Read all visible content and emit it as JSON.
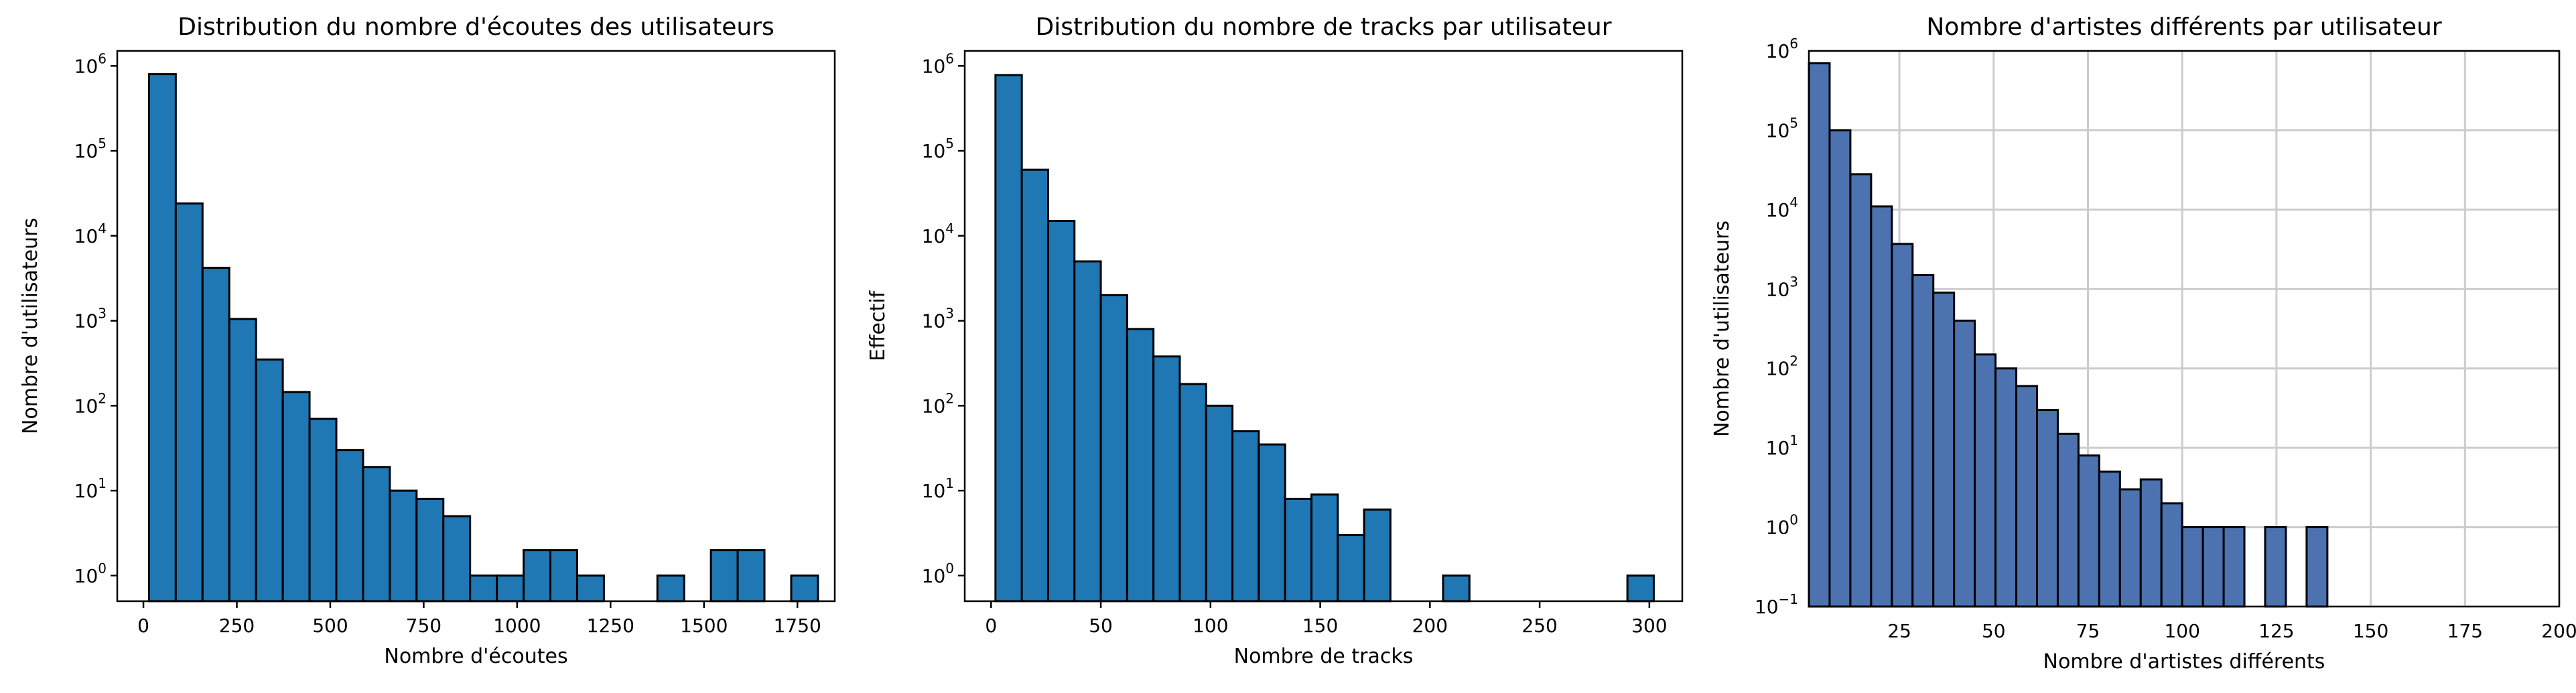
{
  "chart_data": [
    {
      "type": "bar",
      "title": "Distribution du nombre d'écoutes des utilisateurs",
      "xlabel": "Nombre d'écoutes",
      "ylabel": "Nombre d'utilisateurs",
      "yscale": "log",
      "xlim": [
        -70,
        1850
      ],
      "ylim": [
        0.5,
        1500000
      ],
      "grid": false,
      "bar_color": "#1f77b4",
      "edge_color": "#000000",
      "xticks": [
        0,
        250,
        500,
        750,
        1000,
        1250,
        1500,
        1750
      ],
      "xtick_labels": [
        "0",
        "250",
        "500",
        "750",
        "1000",
        "1250",
        "1500",
        "1750"
      ],
      "ytick_labels": [
        {
          "value": 1,
          "base": "10",
          "exp": "0"
        },
        {
          "value": 10,
          "base": "10",
          "exp": "1"
        },
        {
          "value": 100,
          "base": "10",
          "exp": "2"
        },
        {
          "value": 1000,
          "base": "10",
          "exp": "3"
        },
        {
          "value": 10000,
          "base": "10",
          "exp": "4"
        },
        {
          "value": 100000,
          "base": "10",
          "exp": "5"
        },
        {
          "value": 1000000,
          "base": "10",
          "exp": "6"
        }
      ],
      "bin_start": 15,
      "bin_width": 71.6,
      "values": [
        800000,
        24000,
        4200,
        1050,
        350,
        145,
        70,
        30,
        19,
        10,
        8,
        5,
        1,
        1,
        2,
        2,
        1,
        0,
        0,
        1,
        0,
        2,
        2,
        0,
        1
      ]
    },
    {
      "type": "bar",
      "title": "Distribution du nombre de tracks par utilisateur",
      "xlabel": "Nombre de tracks",
      "ylabel": "Effectif",
      "yscale": "log",
      "xlim": [
        -12,
        315
      ],
      "ylim": [
        0.5,
        1500000
      ],
      "grid": false,
      "bar_color": "#1f77b4",
      "edge_color": "#000000",
      "xticks": [
        0,
        50,
        100,
        150,
        200,
        250,
        300
      ],
      "xtick_labels": [
        "0",
        "50",
        "100",
        "150",
        "200",
        "250",
        "300"
      ],
      "ytick_labels": [
        {
          "value": 1,
          "base": "10",
          "exp": "0"
        },
        {
          "value": 10,
          "base": "10",
          "exp": "1"
        },
        {
          "value": 100,
          "base": "10",
          "exp": "2"
        },
        {
          "value": 1000,
          "base": "10",
          "exp": "3"
        },
        {
          "value": 10000,
          "base": "10",
          "exp": "4"
        },
        {
          "value": 100000,
          "base": "10",
          "exp": "5"
        },
        {
          "value": 1000000,
          "base": "10",
          "exp": "6"
        }
      ],
      "bin_start": 2,
      "bin_width": 12,
      "values": [
        780000,
        60000,
        15000,
        5000,
        2000,
        800,
        380,
        180,
        100,
        50,
        35,
        8,
        9,
        3,
        6,
        0,
        0,
        1,
        0,
        0,
        0,
        0,
        0,
        0,
        1
      ]
    },
    {
      "type": "bar",
      "title": "Nombre d'artistes différents par utilisateur",
      "xlabel": "Nombre d'artistes différents",
      "ylabel": "Nombre d'utilisateurs",
      "yscale": "log",
      "xlim": [
        1,
        200
      ],
      "ylim": [
        0.1,
        1000000
      ],
      "grid": true,
      "bar_color": "#4c72b0",
      "edge_color": "#000000",
      "xticks": [
        25,
        50,
        75,
        100,
        125,
        150,
        175,
        200
      ],
      "xtick_labels": [
        "25",
        "50",
        "75",
        "100",
        "125",
        "150",
        "175",
        "200"
      ],
      "ytick_labels": [
        {
          "value": 0.1,
          "base": "10",
          "exp": "−1"
        },
        {
          "value": 1,
          "base": "10",
          "exp": "0"
        },
        {
          "value": 10,
          "base": "10",
          "exp": "1"
        },
        {
          "value": 100,
          "base": "10",
          "exp": "2"
        },
        {
          "value": 1000,
          "base": "10",
          "exp": "3"
        },
        {
          "value": 10000,
          "base": "10",
          "exp": "4"
        },
        {
          "value": 100000,
          "base": "10",
          "exp": "5"
        },
        {
          "value": 1000000,
          "base": "10",
          "exp": "6"
        }
      ],
      "bin_start": 1,
      "bin_width": 5.5,
      "values": [
        700000,
        100000,
        28000,
        11000,
        3700,
        1500,
        900,
        400,
        150,
        100,
        60,
        30,
        15,
        8,
        5,
        3,
        4,
        2,
        1,
        1,
        1,
        0,
        1,
        0,
        1
      ]
    }
  ]
}
